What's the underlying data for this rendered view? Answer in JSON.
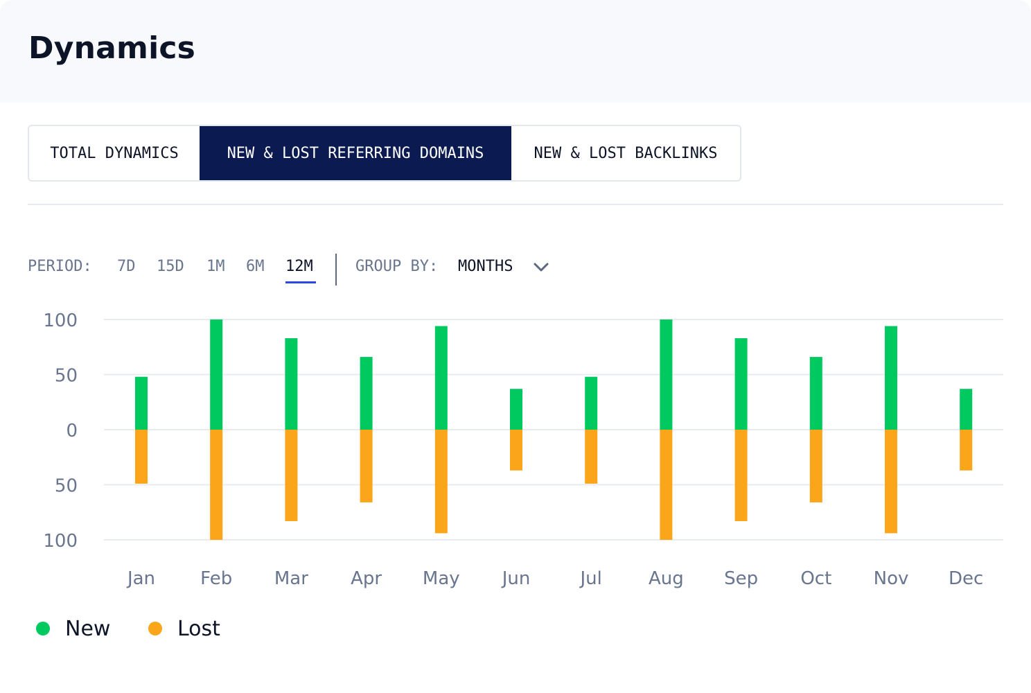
{
  "header": {
    "title": "Dynamics"
  },
  "tabs": [
    {
      "label": "TOTAL DYNAMICS",
      "active": false
    },
    {
      "label": "NEW & LOST REFERRING DOMAINS",
      "active": true
    },
    {
      "label": "NEW & LOST BACKLINKS",
      "active": false
    }
  ],
  "filters": {
    "period_label": "PERIOD:",
    "period_options": [
      "7D",
      "15D",
      "1M",
      "6M",
      "12M"
    ],
    "period_selected": "12M",
    "group_by_label": "GROUP BY:",
    "group_by_value": "MONTHS"
  },
  "colors": {
    "new": "#00c95f",
    "lost": "#fba51a",
    "accent": "#0c1a52",
    "grid": "#e8ebf0"
  },
  "chart_data": {
    "type": "bar",
    "categories": [
      "Jan",
      "Feb",
      "Mar",
      "Apr",
      "May",
      "Jun",
      "Jul",
      "Aug",
      "Sep",
      "Oct",
      "Nov",
      "Dec"
    ],
    "series": [
      {
        "name": "New",
        "values": [
          48,
          100,
          83,
          66,
          94,
          37,
          48,
          100,
          83,
          66,
          94,
          37
        ]
      },
      {
        "name": "Lost",
        "values": [
          -49,
          -100,
          -83,
          -66,
          -94,
          -37,
          -49,
          -100,
          -83,
          -66,
          -94,
          -37
        ]
      }
    ],
    "y_ticks": [
      "100",
      "50",
      "0",
      "50",
      "100"
    ],
    "ylim": [
      -100,
      100
    ],
    "grid": true,
    "legend": "bottom-left"
  },
  "legend": [
    {
      "label": "New",
      "color": "#00c95f"
    },
    {
      "label": "Lost",
      "color": "#fba51a"
    }
  ]
}
